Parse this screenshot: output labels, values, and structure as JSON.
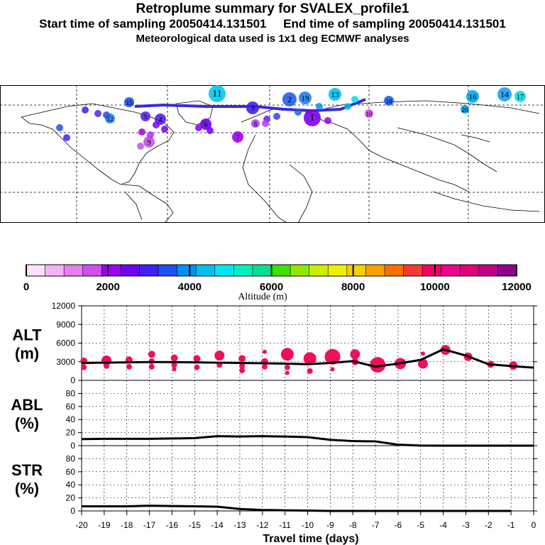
{
  "header": {
    "title": "Retroplume summary for SVALEX_profile1",
    "line2": "Start time of sampling 20050414.131501     End time of sampling 20050414.131501",
    "line3": "Meteorological data used is 1x1 deg ECMWF analyses"
  },
  "colorbar": {
    "label": "Altitude (m)",
    "ticks": [
      "0",
      "2000",
      "4000",
      "6000",
      "8000",
      "10000",
      "12000"
    ],
    "colors": [
      "#ffe0ff",
      "#f3b3f5",
      "#e680ee",
      "#d050e8",
      "#a000f0",
      "#7000f0",
      "#4020f0",
      "#1f50f0",
      "#0090f0",
      "#00c0f0",
      "#00e6f0",
      "#00f0c0",
      "#00e090",
      "#40e000",
      "#90e800",
      "#c8f000",
      "#f0f000",
      "#f8d000",
      "#f8a000",
      "#f87000",
      "#f83838",
      "#f80060",
      "#f00090",
      "#e00080",
      "#c00088",
      "#900090"
    ]
  },
  "map": {
    "labels": [
      "11",
      "14",
      "16",
      "17",
      "13",
      "18",
      "19",
      "20",
      "15",
      "12",
      "1",
      "2",
      "3",
      "4",
      "5",
      "6",
      "7",
      "8",
      "9",
      "10"
    ]
  },
  "chart_data": [
    {
      "type": "line",
      "name": "ALT",
      "ylabel": "ALT\n(m)",
      "x": [
        -20,
        -19,
        -18,
        -17,
        -16,
        -15,
        -14,
        -13,
        -12,
        -11,
        -10,
        -9,
        -8,
        -7,
        -6,
        -5,
        -4,
        -3,
        -2,
        -1,
        0
      ],
      "y": [
        2800,
        2850,
        2900,
        2950,
        2950,
        2900,
        2850,
        2800,
        2750,
        2700,
        2600,
        2800,
        3100,
        2200,
        2700,
        3300,
        5000,
        4000,
        2600,
        2300,
        2050
      ],
      "ylim": [
        0,
        12000
      ],
      "yticks": [
        "0",
        "3000",
        "6000",
        "9000",
        "12000"
      ],
      "markers": [
        {
          "x": -19.9,
          "y": 3100,
          "s": 5
        },
        {
          "x": -19.9,
          "y": 2100,
          "s": 4
        },
        {
          "x": -18.9,
          "y": 3200,
          "s": 7
        },
        {
          "x": -18.9,
          "y": 2300,
          "s": 4
        },
        {
          "x": -17.9,
          "y": 3300,
          "s": 5
        },
        {
          "x": -17.9,
          "y": 2200,
          "s": 4
        },
        {
          "x": -16.9,
          "y": 4200,
          "s": 5
        },
        {
          "x": -16.9,
          "y": 3100,
          "s": 4
        },
        {
          "x": -16.9,
          "y": 2200,
          "s": 4
        },
        {
          "x": -15.9,
          "y": 3600,
          "s": 5
        },
        {
          "x": -15.9,
          "y": 2500,
          "s": 4
        },
        {
          "x": -15.9,
          "y": 1800,
          "s": 3
        },
        {
          "x": -14.9,
          "y": 3500,
          "s": 5
        },
        {
          "x": -14.9,
          "y": 2100,
          "s": 4
        },
        {
          "x": -13.9,
          "y": 4000,
          "s": 7
        },
        {
          "x": -13.9,
          "y": 2500,
          "s": 4
        },
        {
          "x": -12.9,
          "y": 3500,
          "s": 5
        },
        {
          "x": -12.9,
          "y": 2300,
          "s": 4
        },
        {
          "x": -12.9,
          "y": 1600,
          "s": 4
        },
        {
          "x": -11.9,
          "y": 4600,
          "s": 3
        },
        {
          "x": -11.9,
          "y": 3000,
          "s": 5
        },
        {
          "x": -11.9,
          "y": 2200,
          "s": 4
        },
        {
          "x": -10.9,
          "y": 4200,
          "s": 9
        },
        {
          "x": -10.9,
          "y": 2100,
          "s": 4
        },
        {
          "x": -10.9,
          "y": 1200,
          "s": 3
        },
        {
          "x": -9.9,
          "y": 3500,
          "s": 9
        },
        {
          "x": -9.9,
          "y": 1500,
          "s": 4
        },
        {
          "x": -8.9,
          "y": 3800,
          "s": 11
        },
        {
          "x": -8.9,
          "y": 1800,
          "s": 3
        },
        {
          "x": -7.9,
          "y": 4200,
          "s": 7
        },
        {
          "x": -7.9,
          "y": 3000,
          "s": 5
        },
        {
          "x": -6.9,
          "y": 2500,
          "s": 11
        },
        {
          "x": -5.9,
          "y": 2700,
          "s": 8
        },
        {
          "x": -4.9,
          "y": 4300,
          "s": 3
        },
        {
          "x": -4.9,
          "y": 2700,
          "s": 7
        },
        {
          "x": -3.9,
          "y": 4900,
          "s": 7
        },
        {
          "x": -2.9,
          "y": 3800,
          "s": 6
        },
        {
          "x": -1.9,
          "y": 2600,
          "s": 5
        },
        {
          "x": -0.9,
          "y": 2400,
          "s": 6
        }
      ]
    },
    {
      "type": "line",
      "name": "ABL",
      "ylabel": "ABL\n(%)",
      "x": [
        -20,
        -19,
        -18,
        -17,
        -16,
        -15,
        -14,
        -13,
        -12,
        -11,
        -10,
        -9,
        -8,
        -7,
        -6,
        -5,
        -4,
        -3,
        -2,
        -1,
        0
      ],
      "y": [
        10,
        10.5,
        10.5,
        10.5,
        11,
        11.5,
        14.5,
        14,
        14.5,
        14,
        13,
        9,
        7,
        6.5,
        1.5,
        0.2,
        0,
        0,
        0,
        0,
        0
      ],
      "ylim": [
        0,
        100
      ],
      "yticks": [
        "0",
        "20",
        "40",
        "60",
        "80"
      ]
    },
    {
      "type": "line",
      "name": "STR",
      "ylabel": "STR\n(%)",
      "x": [
        -20,
        -19,
        -18,
        -17,
        -16,
        -15,
        -14,
        -13,
        -12,
        -11,
        -10,
        -9,
        -8,
        -7,
        -6,
        -5,
        -4,
        -3,
        -2,
        -1
      ],
      "y": [
        7,
        7,
        7,
        8,
        7.5,
        7,
        6.5,
        3,
        1.5,
        1,
        0.5,
        0,
        0,
        0,
        0,
        0,
        0,
        0,
        0,
        0
      ],
      "ylim": [
        0,
        100
      ],
      "yticks": [
        "0",
        "20",
        "40",
        "60",
        "80"
      ]
    }
  ],
  "xaxis": {
    "label": "Travel time (days)",
    "ticks": [
      "-20",
      "-19",
      "-18",
      "-17",
      "-16",
      "-15",
      "-14",
      "-13",
      "-12",
      "-11",
      "-10",
      "-9",
      "-8",
      "-7",
      "-6",
      "-5",
      "-4",
      "-3",
      "-2",
      "-1",
      "0"
    ]
  },
  "style": {
    "marker_color": "#f0105a",
    "line_color": "#000000"
  }
}
